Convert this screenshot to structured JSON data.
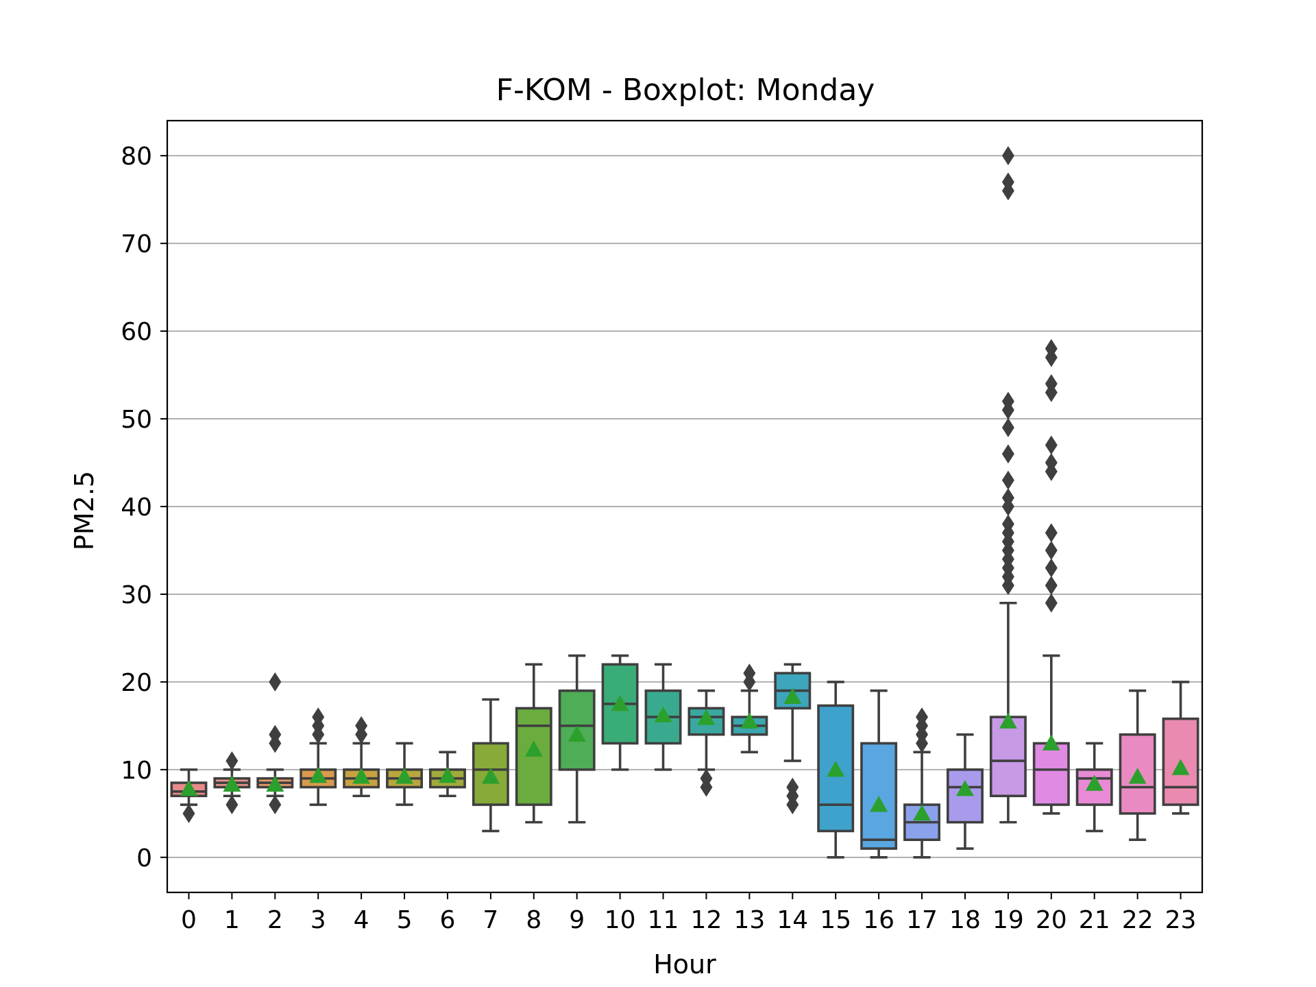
{
  "chart_data": {
    "type": "box",
    "title": "F-KOM - Boxplot: Monday",
    "xlabel": "Hour",
    "ylabel": "PM2.5",
    "ylim": [
      -4,
      84
    ],
    "yticks": [
      0,
      10,
      20,
      30,
      40,
      50,
      60,
      70,
      80
    ],
    "grid": "horizontal",
    "mean_marker_color": "#2ca02c",
    "edge_color": "#3f3f3f",
    "categories": [
      "0",
      "1",
      "2",
      "3",
      "4",
      "5",
      "6",
      "7",
      "8",
      "9",
      "10",
      "11",
      "12",
      "13",
      "14",
      "15",
      "16",
      "17",
      "18",
      "19",
      "20",
      "21",
      "22",
      "23"
    ],
    "boxes": [
      {
        "x": "0",
        "whislo": 6,
        "q1": 7,
        "med": 7.5,
        "q3": 8.5,
        "whishi": 10,
        "mean": 7.8,
        "fliers": [
          5
        ],
        "color": "#e88a8a"
      },
      {
        "x": "1",
        "whislo": 7,
        "q1": 8,
        "med": 8.5,
        "q3": 9,
        "whishi": 10,
        "mean": 8.3,
        "fliers": [
          6,
          11
        ],
        "color": "#e8928a"
      },
      {
        "x": "2",
        "whislo": 7,
        "q1": 8,
        "med": 8.5,
        "q3": 9,
        "whishi": 10,
        "mean": 8.3,
        "fliers": [
          6,
          13,
          14,
          20
        ],
        "color": "#e69a6a"
      },
      {
        "x": "3",
        "whislo": 6,
        "q1": 8,
        "med": 9,
        "q3": 10,
        "whishi": 13,
        "mean": 9.3,
        "fliers": [
          14,
          15,
          16
        ],
        "color": "#d99a4e"
      },
      {
        "x": "4",
        "whislo": 7,
        "q1": 8,
        "med": 9,
        "q3": 10,
        "whishi": 13,
        "mean": 9.2,
        "fliers": [
          14,
          15
        ],
        "color": "#c9a240"
      },
      {
        "x": "5",
        "whislo": 6,
        "q1": 8,
        "med": 9,
        "q3": 10,
        "whishi": 13,
        "mean": 9.2,
        "fliers": [],
        "color": "#b8a63e"
      },
      {
        "x": "6",
        "whislo": 7,
        "q1": 8,
        "med": 9,
        "q3": 10,
        "whishi": 12,
        "mean": 9.3,
        "fliers": [],
        "color": "#a2aa3c"
      },
      {
        "x": "7",
        "whislo": 3,
        "q1": 6,
        "med": 10,
        "q3": 13,
        "whishi": 18,
        "mean": 9.2,
        "fliers": [],
        "color": "#88aa38"
      },
      {
        "x": "8",
        "whislo": 4,
        "q1": 6,
        "med": 15,
        "q3": 17,
        "whishi": 22,
        "mean": 12.3,
        "fliers": [],
        "color": "#6aac3e"
      },
      {
        "x": "9",
        "whislo": 4,
        "q1": 10,
        "med": 15,
        "q3": 19,
        "whishi": 23,
        "mean": 14,
        "fliers": [],
        "color": "#4ead56"
      },
      {
        "x": "10",
        "whislo": 10,
        "q1": 13,
        "med": 17.5,
        "q3": 22,
        "whishi": 23,
        "mean": 17.5,
        "fliers": [],
        "color": "#3aac78"
      },
      {
        "x": "11",
        "whislo": 10,
        "q1": 13,
        "med": 16,
        "q3": 19,
        "whishi": 22,
        "mean": 16.2,
        "fliers": [],
        "color": "#3aaa8e"
      },
      {
        "x": "12",
        "whislo": 10,
        "q1": 14,
        "med": 16,
        "q3": 17,
        "whishi": 19,
        "mean": 15.9,
        "fliers": [
          8,
          9
        ],
        "color": "#3aa8a0"
      },
      {
        "x": "13",
        "whislo": 12,
        "q1": 14,
        "med": 15,
        "q3": 16,
        "whishi": 19,
        "mean": 15.5,
        "fliers": [
          20,
          21
        ],
        "color": "#3ba6ae"
      },
      {
        "x": "14",
        "whislo": 11,
        "q1": 17,
        "med": 19,
        "q3": 21,
        "whishi": 22,
        "mean": 18.3,
        "fliers": [
          6,
          7,
          8
        ],
        "color": "#3da5bc"
      },
      {
        "x": "15",
        "whislo": 0,
        "q1": 3,
        "med": 6,
        "q3": 17.3,
        "whishi": 20,
        "mean": 10,
        "fliers": [],
        "color": "#3fa2cc"
      },
      {
        "x": "16",
        "whislo": 0,
        "q1": 1,
        "med": 2,
        "q3": 13,
        "whishi": 19,
        "mean": 6,
        "fliers": [],
        "color": "#5aa6e0"
      },
      {
        "x": "17",
        "whislo": 0,
        "q1": 2,
        "med": 4,
        "q3": 6,
        "whishi": 12,
        "mean": 5,
        "fliers": [
          13,
          14,
          15,
          16
        ],
        "color": "#8aa2ec"
      },
      {
        "x": "18",
        "whislo": 1,
        "q1": 4,
        "med": 8,
        "q3": 10,
        "whishi": 14,
        "mean": 7.8,
        "fliers": [],
        "color": "#aa9aec"
      },
      {
        "x": "19",
        "whislo": 4,
        "q1": 7,
        "med": 11,
        "q3": 16,
        "whishi": 29,
        "mean": 15.5,
        "fliers": [
          31,
          32,
          33,
          34,
          35,
          36,
          37,
          38,
          40,
          41,
          43,
          46,
          49,
          51,
          52,
          76,
          77,
          80
        ],
        "color": "#c79ae6"
      },
      {
        "x": "20",
        "whislo": 5,
        "q1": 6,
        "med": 10,
        "q3": 13,
        "whishi": 23,
        "mean": 13,
        "fliers": [
          29,
          31,
          33,
          35,
          37,
          44,
          45,
          47,
          53,
          54,
          57,
          58
        ],
        "color": "#e08ae4"
      },
      {
        "x": "21",
        "whislo": 3,
        "q1": 6,
        "med": 9,
        "q3": 10,
        "whishi": 13,
        "mean": 8.4,
        "fliers": [],
        "color": "#e88ad6"
      },
      {
        "x": "22",
        "whislo": 2,
        "q1": 5,
        "med": 8,
        "q3": 14,
        "whishi": 19,
        "mean": 9.2,
        "fliers": [],
        "color": "#ea8ac2"
      },
      {
        "x": "23",
        "whislo": 5,
        "q1": 6,
        "med": 8,
        "q3": 15.8,
        "whishi": 20,
        "mean": 10.2,
        "fliers": [],
        "color": "#ea8ab0"
      }
    ]
  }
}
